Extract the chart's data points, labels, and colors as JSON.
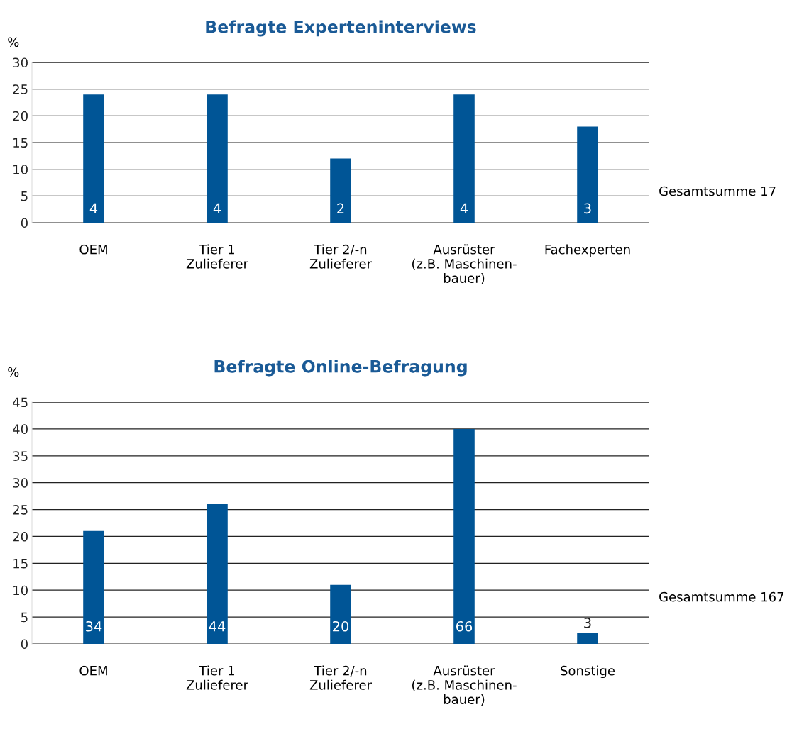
{
  "chart_data": [
    {
      "type": "bar",
      "title": "Befragte Experteninterviews",
      "ylabel": "%",
      "categories": [
        "OEM",
        "Tier 1\nZulieferer",
        "Tier 2/-n\nZulieferer",
        "Ausrüster\n(z.B. Maschinen-\nbauer)",
        "Fachexperten"
      ],
      "values": [
        24,
        24,
        12,
        24,
        18
      ],
      "color": "#005596",
      "ylim": [
        0,
        30
      ],
      "yticks": [
        0,
        5,
        10,
        15,
        20,
        25,
        30
      ],
      "grid": "y",
      "legend": false,
      "annotations": [
        "4",
        "4",
        "2",
        "4",
        "3",
        "Gesamtsumme 17"
      ]
    },
    {
      "type": "bar",
      "title": "Befragte Online-Befragung",
      "ylabel": "%",
      "categories": [
        "OEM",
        "Tier 1\nZulieferer",
        "Tier 2/-n\nZulieferer",
        "Ausrüster\n(z.B. Maschinen-\nbauer)",
        "Sonstige"
      ],
      "values": [
        21,
        26,
        11,
        40,
        2
      ],
      "color": "#005596",
      "ylim": [
        0,
        45
      ],
      "yticks": [
        0,
        5,
        10,
        15,
        20,
        25,
        30,
        35,
        40,
        45
      ],
      "grid": "y",
      "legend": false,
      "annotations": [
        "34",
        "44",
        "20",
        "66",
        "3",
        "Gesamtsumme 167"
      ]
    }
  ]
}
